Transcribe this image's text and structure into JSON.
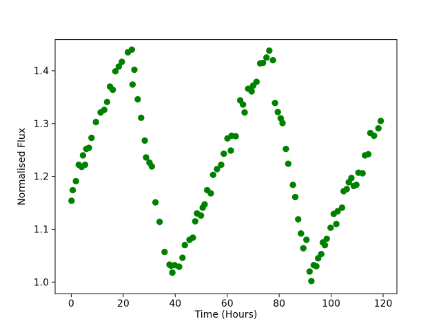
{
  "figure": {
    "background_color": "#ffffff",
    "spine_color": "#000000",
    "title": ""
  },
  "chart_data": {
    "type": "scatter",
    "title": "",
    "xlabel": "Time (Hours)",
    "ylabel": "Normalised Flux",
    "legend": null,
    "grid": false,
    "xlim": [
      -6.2,
      125.3
    ],
    "ylim": [
      0.978,
      1.459
    ],
    "xticks": {
      "values": [
        0,
        20,
        40,
        60,
        80,
        100,
        120
      ],
      "labels": [
        "0",
        "20",
        "40",
        "60",
        "80",
        "100",
        "120"
      ]
    },
    "yticks": {
      "values": [
        1.0,
        1.1,
        1.2,
        1.3,
        1.4
      ],
      "labels": [
        "1.0",
        "1.1",
        "1.2",
        "1.3",
        "1.4"
      ]
    },
    "marker": {
      "shape": "circle",
      "color": "#008000",
      "radius_px": 4.7
    },
    "series": [
      {
        "name": "normalised-flux-light-curve",
        "points": [
          [
            0.1,
            1.154
          ],
          [
            0.6,
            1.174
          ],
          [
            1.8,
            1.191
          ],
          [
            2.9,
            1.222
          ],
          [
            4.0,
            1.218
          ],
          [
            4.5,
            1.24
          ],
          [
            5.3,
            1.222
          ],
          [
            5.8,
            1.252
          ],
          [
            6.8,
            1.254
          ],
          [
            7.8,
            1.273
          ],
          [
            9.5,
            1.303
          ],
          [
            11.3,
            1.321
          ],
          [
            12.7,
            1.326
          ],
          [
            13.8,
            1.341
          ],
          [
            14.9,
            1.37
          ],
          [
            16.0,
            1.364
          ],
          [
            17.0,
            1.399
          ],
          [
            18.3,
            1.408
          ],
          [
            19.5,
            1.417
          ],
          [
            21.8,
            1.435
          ],
          [
            23.3,
            1.44
          ],
          [
            23.6,
            1.374
          ],
          [
            24.3,
            1.402
          ],
          [
            25.6,
            1.346
          ],
          [
            26.9,
            1.311
          ],
          [
            28.3,
            1.268
          ],
          [
            28.8,
            1.236
          ],
          [
            30.1,
            1.226
          ],
          [
            31.0,
            1.219
          ],
          [
            32.4,
            1.151
          ],
          [
            34.0,
            1.114
          ],
          [
            35.9,
            1.057
          ],
          [
            37.8,
            1.033
          ],
          [
            38.4,
            1.031
          ],
          [
            38.9,
            1.018
          ],
          [
            39.8,
            1.032
          ],
          [
            41.5,
            1.029
          ],
          [
            42.8,
            1.046
          ],
          [
            43.7,
            1.07
          ],
          [
            45.5,
            1.08
          ],
          [
            46.8,
            1.084
          ],
          [
            47.7,
            1.115
          ],
          [
            48.4,
            1.13
          ],
          [
            49.9,
            1.126
          ],
          [
            50.6,
            1.141
          ],
          [
            51.3,
            1.147
          ],
          [
            52.3,
            1.174
          ],
          [
            53.7,
            1.168
          ],
          [
            54.6,
            1.203
          ],
          [
            56.1,
            1.214
          ],
          [
            57.7,
            1.222
          ],
          [
            58.7,
            1.243
          ],
          [
            60.1,
            1.272
          ],
          [
            61.4,
            1.249
          ],
          [
            61.7,
            1.277
          ],
          [
            63.3,
            1.276
          ],
          [
            65.0,
            1.344
          ],
          [
            66.1,
            1.336
          ],
          [
            66.7,
            1.321
          ],
          [
            68.1,
            1.366
          ],
          [
            69.4,
            1.361
          ],
          [
            70.0,
            1.372
          ],
          [
            71.3,
            1.379
          ],
          [
            72.7,
            1.414
          ],
          [
            73.8,
            1.415
          ],
          [
            75.1,
            1.425
          ],
          [
            76.2,
            1.438
          ],
          [
            77.6,
            1.42
          ],
          [
            78.4,
            1.339
          ],
          [
            79.5,
            1.322
          ],
          [
            80.6,
            1.31
          ],
          [
            81.3,
            1.301
          ],
          [
            82.6,
            1.252
          ],
          [
            83.5,
            1.224
          ],
          [
            85.3,
            1.184
          ],
          [
            86.2,
            1.161
          ],
          [
            87.3,
            1.119
          ],
          [
            88.4,
            1.092
          ],
          [
            89.3,
            1.064
          ],
          [
            90.5,
            1.08
          ],
          [
            91.7,
            1.02
          ],
          [
            92.4,
            1.002
          ],
          [
            93.3,
            1.032
          ],
          [
            94.3,
            1.03
          ],
          [
            95.0,
            1.045
          ],
          [
            96.2,
            1.053
          ],
          [
            96.8,
            1.075
          ],
          [
            97.6,
            1.07
          ],
          [
            98.3,
            1.082
          ],
          [
            99.8,
            1.103
          ],
          [
            101.0,
            1.129
          ],
          [
            102.0,
            1.11
          ],
          [
            102.5,
            1.134
          ],
          [
            104.2,
            1.141
          ],
          [
            104.8,
            1.172
          ],
          [
            106.0,
            1.176
          ],
          [
            106.8,
            1.189
          ],
          [
            107.8,
            1.197
          ],
          [
            108.7,
            1.182
          ],
          [
            109.7,
            1.184
          ],
          [
            110.5,
            1.207
          ],
          [
            112.1,
            1.206
          ],
          [
            113.0,
            1.24
          ],
          [
            114.3,
            1.242
          ],
          [
            115.1,
            1.282
          ],
          [
            116.5,
            1.277
          ],
          [
            118.2,
            1.291
          ],
          [
            119.1,
            1.305
          ]
        ]
      }
    ]
  }
}
